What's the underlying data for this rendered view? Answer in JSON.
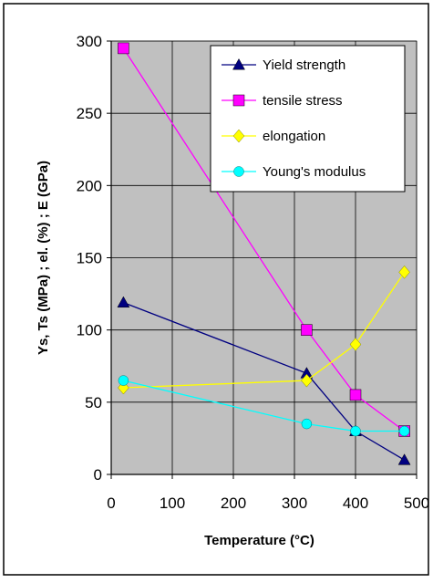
{
  "chart_data": {
    "type": "line",
    "title": "",
    "xlabel": "Temperature (°C)",
    "ylabel": "Ys, Ts (MPa) ; el. (%) ; E (GPa)",
    "xlim": [
      0,
      500
    ],
    "ylim": [
      0,
      300
    ],
    "xticks": [
      0,
      100,
      200,
      300,
      400,
      500
    ],
    "yticks": [
      0,
      50,
      100,
      150,
      200,
      250,
      300
    ],
    "grid": true,
    "legend_position": "top-right",
    "plot_background": "#c0c0c0",
    "series": [
      {
        "name": "Yield strength",
        "color": "#000080",
        "marker": "triangle",
        "x": [
          20,
          320,
          400,
          480
        ],
        "y": [
          119,
          70,
          30,
          10
        ]
      },
      {
        "name": "tensile stress",
        "color": "#ff00ff",
        "marker": "square",
        "x": [
          20,
          320,
          400,
          480
        ],
        "y": [
          295,
          100,
          55,
          30
        ]
      },
      {
        "name": "elongation",
        "color": "#ffff00",
        "marker": "diamond",
        "x": [
          20,
          320,
          400,
          480
        ],
        "y": [
          60,
          65,
          90,
          140
        ]
      },
      {
        "name": "Young's modulus",
        "color": "#00ffff",
        "marker": "circle",
        "x": [
          20,
          320,
          400,
          480
        ],
        "y": [
          65,
          35,
          30,
          30
        ]
      }
    ]
  }
}
